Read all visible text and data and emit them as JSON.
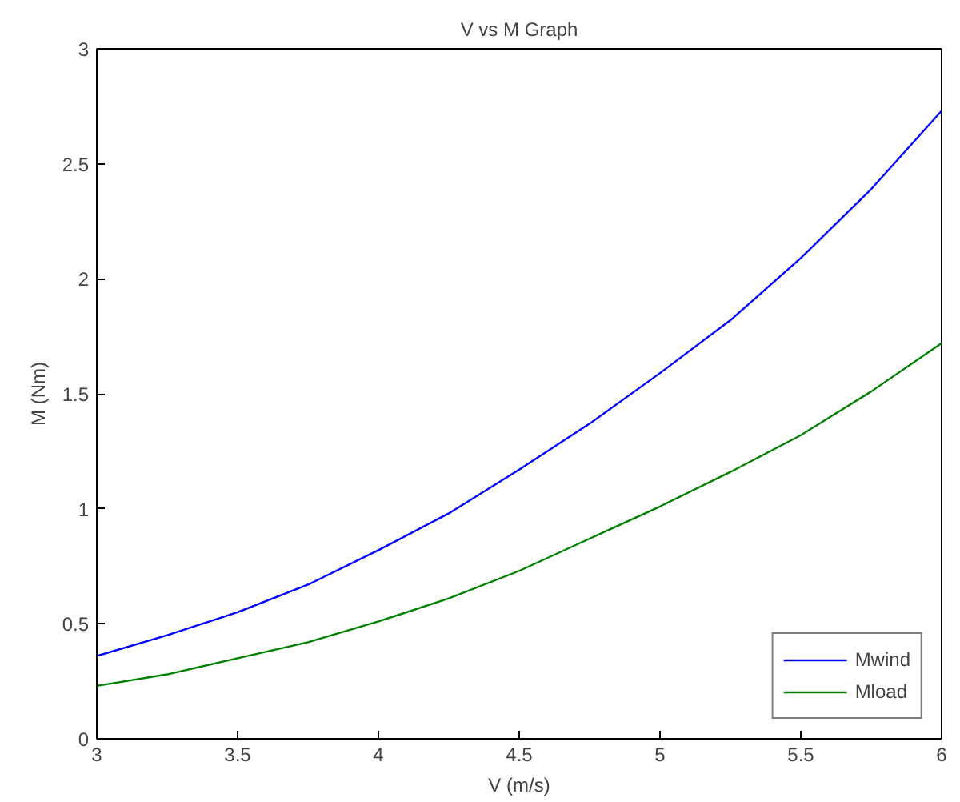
{
  "chart_data": {
    "type": "line",
    "title": "V vs M Graph",
    "xlabel": "V (m/s)",
    "ylabel": "M (Nm)",
    "x": [
      3,
      3.25,
      3.5,
      3.75,
      4,
      4.25,
      4.5,
      4.75,
      5,
      5.25,
      5.5,
      5.75,
      6
    ],
    "series": [
      {
        "name": "Mwind",
        "color": "#0000ff",
        "values": [
          0.36,
          0.45,
          0.55,
          0.67,
          0.82,
          0.98,
          1.17,
          1.37,
          1.59,
          1.82,
          2.09,
          2.39,
          2.73
        ]
      },
      {
        "name": "Mload",
        "color": "#008000",
        "values": [
          0.23,
          0.28,
          0.35,
          0.42,
          0.51,
          0.61,
          0.73,
          0.87,
          1.01,
          1.16,
          1.32,
          1.51,
          1.72
        ]
      }
    ],
    "xlim": [
      3,
      6
    ],
    "ylim": [
      0,
      3
    ],
    "xticks": [
      3,
      3.5,
      4,
      4.5,
      5,
      5.5,
      6
    ],
    "yticks": [
      0,
      0.5,
      1,
      1.5,
      2,
      2.5,
      3
    ],
    "grid": false,
    "legend": "bottom right"
  }
}
